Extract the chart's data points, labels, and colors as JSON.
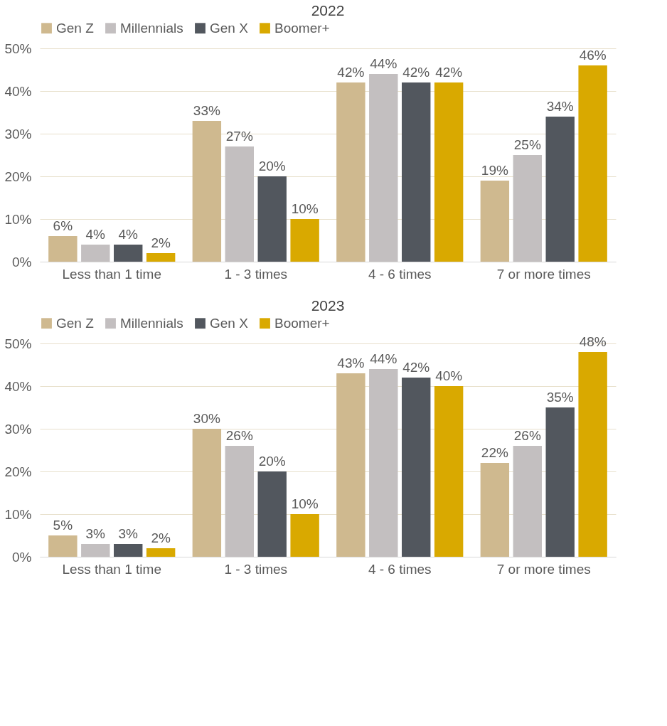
{
  "chart_data": [
    {
      "type": "bar",
      "title": "2022",
      "categories": [
        "Less than 1 time",
        "1 - 3 times",
        "4 - 6 times",
        "7 or more times"
      ],
      "series": [
        {
          "name": "Gen Z",
          "color": "#cfb98f",
          "values": [
            6,
            33,
            42,
            19
          ],
          "value_labels": [
            "6%",
            "33%",
            "42%",
            "19%"
          ]
        },
        {
          "name": "Millennials",
          "color": "#c3bfc0",
          "values": [
            4,
            27,
            44,
            25
          ],
          "value_labels": [
            "4%",
            "27%",
            "44%",
            "25%"
          ]
        },
        {
          "name": "Gen X",
          "color": "#52575e",
          "values": [
            4,
            20,
            42,
            34
          ],
          "value_labels": [
            "4%",
            "20%",
            "42%",
            "34%"
          ]
        },
        {
          "name": "Boomer+",
          "color": "#d9a900",
          "values": [
            2,
            10,
            42,
            46
          ],
          "value_labels": [
            "2%",
            "10%",
            "42%",
            "46%"
          ]
        }
      ],
      "ylim": [
        0,
        50
      ],
      "yticks": [
        {
          "value": 0,
          "label": "0%"
        },
        {
          "value": 10,
          "label": "10%"
        },
        {
          "value": 20,
          "label": "20%"
        },
        {
          "value": 30,
          "label": "30%"
        },
        {
          "value": 40,
          "label": "40%"
        },
        {
          "value": 50,
          "label": "50%"
        }
      ],
      "grid": "y",
      "legend": "top"
    },
    {
      "type": "bar",
      "title": "2023",
      "categories": [
        "Less than 1 time",
        "1 - 3 times",
        "4 - 6 times",
        "7 or more times"
      ],
      "series": [
        {
          "name": "Gen Z",
          "color": "#cfb98f",
          "values": [
            5,
            30,
            43,
            22
          ],
          "value_labels": [
            "5%",
            "30%",
            "43%",
            "22%"
          ]
        },
        {
          "name": "Millennials",
          "color": "#c3bfc0",
          "values": [
            3,
            26,
            44,
            26
          ],
          "value_labels": [
            "3%",
            "26%",
            "44%",
            "26%"
          ]
        },
        {
          "name": "Gen X",
          "color": "#52575e",
          "values": [
            3,
            20,
            42,
            35
          ],
          "value_labels": [
            "3%",
            "20%",
            "42%",
            "35%"
          ]
        },
        {
          "name": "Boomer+",
          "color": "#d9a900",
          "values": [
            2,
            10,
            40,
            48
          ],
          "value_labels": [
            "2%",
            "10%",
            "40%",
            "48%"
          ]
        }
      ],
      "ylim": [
        0,
        50
      ],
      "yticks": [
        {
          "value": 0,
          "label": "0%"
        },
        {
          "value": 10,
          "label": "10%"
        },
        {
          "value": 20,
          "label": "20%"
        },
        {
          "value": 30,
          "label": "30%"
        },
        {
          "value": 40,
          "label": "40%"
        },
        {
          "value": 50,
          "label": "50%"
        }
      ],
      "grid": "y",
      "legend": "top"
    }
  ]
}
